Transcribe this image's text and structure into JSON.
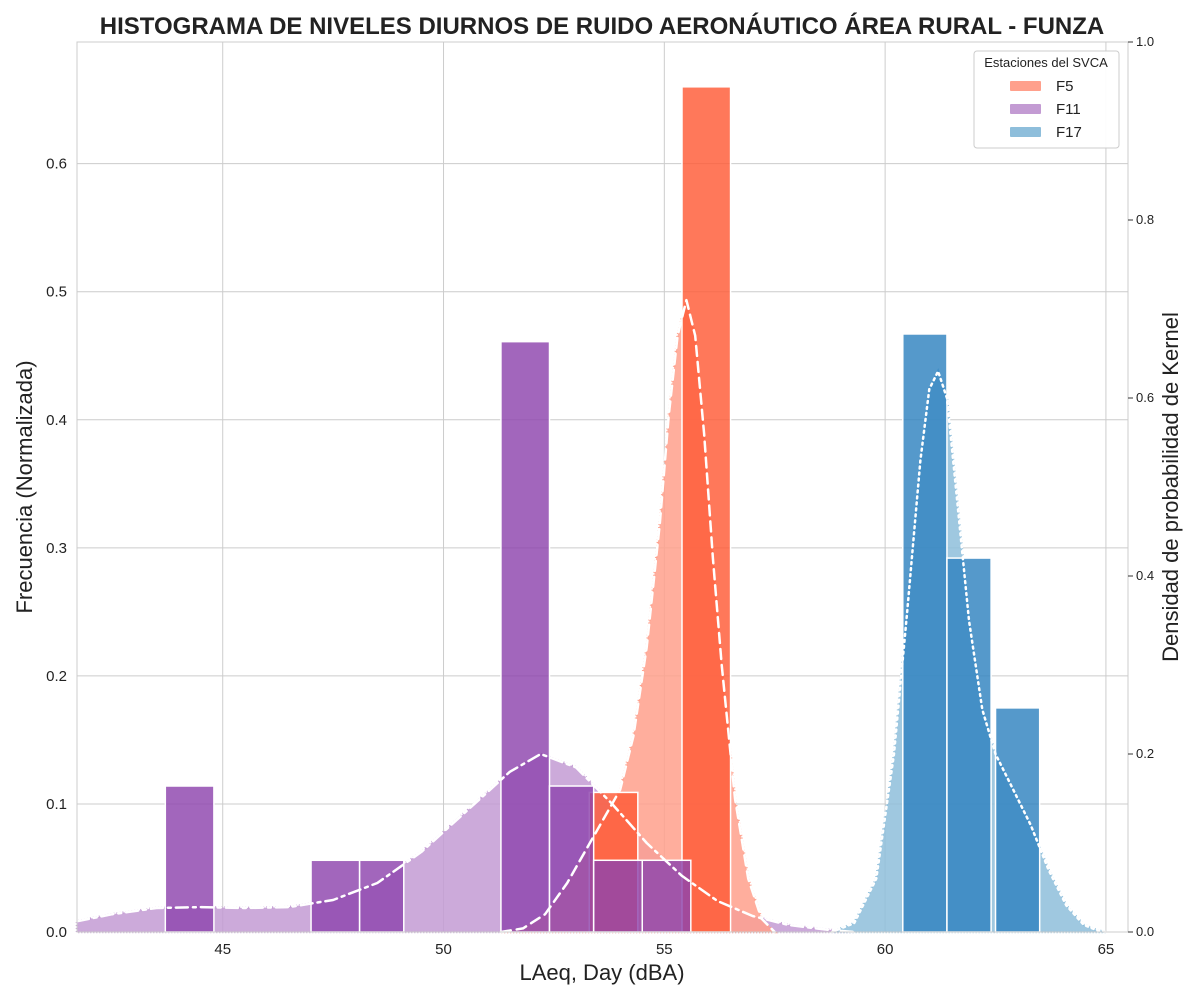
{
  "chart_data": {
    "type": "bar",
    "title": "HISTOGRAMA DE NIVELES DIURNOS DE RUIDO AERONÁUTICO ÁREA RURAL - FUNZA",
    "xlabel": "LAeq, Day (dBA)",
    "ylabel": "Frecuencia (Normalizada)",
    "ylabel_right": "Densidad de probabilidad de Kernel",
    "xlim": [
      41.7,
      65.5
    ],
    "ylim": [
      0,
      0.695
    ],
    "ylim_right": [
      0,
      1.0
    ],
    "x_ticks": [
      45,
      50,
      55,
      60,
      65
    ],
    "y_ticks": [
      0.0,
      0.1,
      0.2,
      0.3,
      0.4,
      0.5,
      0.6
    ],
    "y_ticks_right": [
      0.0,
      0.2,
      0.4,
      0.6,
      0.8,
      1.0
    ],
    "grid": true,
    "legend": {
      "title": "Estaciones del SVCA",
      "placement": "top-right"
    },
    "series": [
      {
        "name": "F5",
        "bar_color": "#ff5a36",
        "kde_color": "#ffa08c",
        "kde_line_style": "dashed",
        "bins": [
          {
            "x0": 53.3,
            "x1": 54.4,
            "value": 0.109
          },
          {
            "x0": 55.4,
            "x1": 56.5,
            "value": 0.66
          }
        ],
        "kde": {
          "x": [
            51.3,
            51.8,
            52.3,
            52.8,
            53.2,
            53.6,
            54.0,
            54.3,
            54.6,
            54.9,
            55.1,
            55.3,
            55.5,
            55.7,
            55.9,
            56.1,
            56.3,
            56.6,
            56.9,
            57.2,
            57.5
          ],
          "y": [
            0.0,
            0.004,
            0.02,
            0.055,
            0.09,
            0.125,
            0.16,
            0.22,
            0.32,
            0.46,
            0.58,
            0.67,
            0.71,
            0.67,
            0.56,
            0.42,
            0.3,
            0.15,
            0.06,
            0.015,
            0.0
          ]
        }
      },
      {
        "name": "F11",
        "bar_color": "#8e44ad",
        "kde_color": "#c39bd3",
        "kde_line_style": "dash-dot",
        "bins": [
          {
            "x0": 43.7,
            "x1": 44.8,
            "value": 0.114
          },
          {
            "x0": 47.0,
            "x1": 48.1,
            "value": 0.056
          },
          {
            "x0": 48.1,
            "x1": 49.1,
            "value": 0.056
          },
          {
            "x0": 51.3,
            "x1": 52.4,
            "value": 0.461
          },
          {
            "x0": 52.4,
            "x1": 53.4,
            "value": 0.114
          },
          {
            "x0": 53.4,
            "x1": 54.5,
            "value": 0.056
          },
          {
            "x0": 54.5,
            "x1": 55.6,
            "value": 0.056
          }
        ],
        "kde": {
          "x": [
            41.7,
            42.5,
            43.5,
            44.5,
            45.5,
            46.5,
            47.5,
            48.5,
            49.5,
            50.5,
            51.5,
            52.2,
            53.0,
            53.8,
            54.6,
            55.4,
            56.2,
            57.0,
            57.8,
            58.6,
            59.3
          ],
          "y": [
            0.012,
            0.02,
            0.027,
            0.028,
            0.027,
            0.028,
            0.036,
            0.055,
            0.09,
            0.135,
            0.18,
            0.2,
            0.185,
            0.145,
            0.1,
            0.063,
            0.035,
            0.018,
            0.008,
            0.003,
            0.0
          ]
        }
      },
      {
        "name": "F17",
        "bar_color": "#2f83bf",
        "kde_color": "#8ebedb",
        "kde_line_style": "dotted",
        "bins": [
          {
            "x0": 60.4,
            "x1": 61.4,
            "value": 0.467
          },
          {
            "x0": 61.4,
            "x1": 62.4,
            "value": 0.292
          },
          {
            "x0": 62.5,
            "x1": 63.5,
            "value": 0.175
          }
        ],
        "kde": {
          "x": [
            58.8,
            59.3,
            59.8,
            60.2,
            60.5,
            60.8,
            61.0,
            61.2,
            61.4,
            61.6,
            61.9,
            62.2,
            62.5,
            62.9,
            63.3,
            63.7,
            64.1,
            64.5,
            64.8,
            65.0
          ],
          "y": [
            0.0,
            0.01,
            0.06,
            0.2,
            0.36,
            0.53,
            0.61,
            0.63,
            0.6,
            0.5,
            0.35,
            0.25,
            0.2,
            0.16,
            0.12,
            0.07,
            0.03,
            0.008,
            0.002,
            0.0
          ]
        }
      }
    ]
  }
}
